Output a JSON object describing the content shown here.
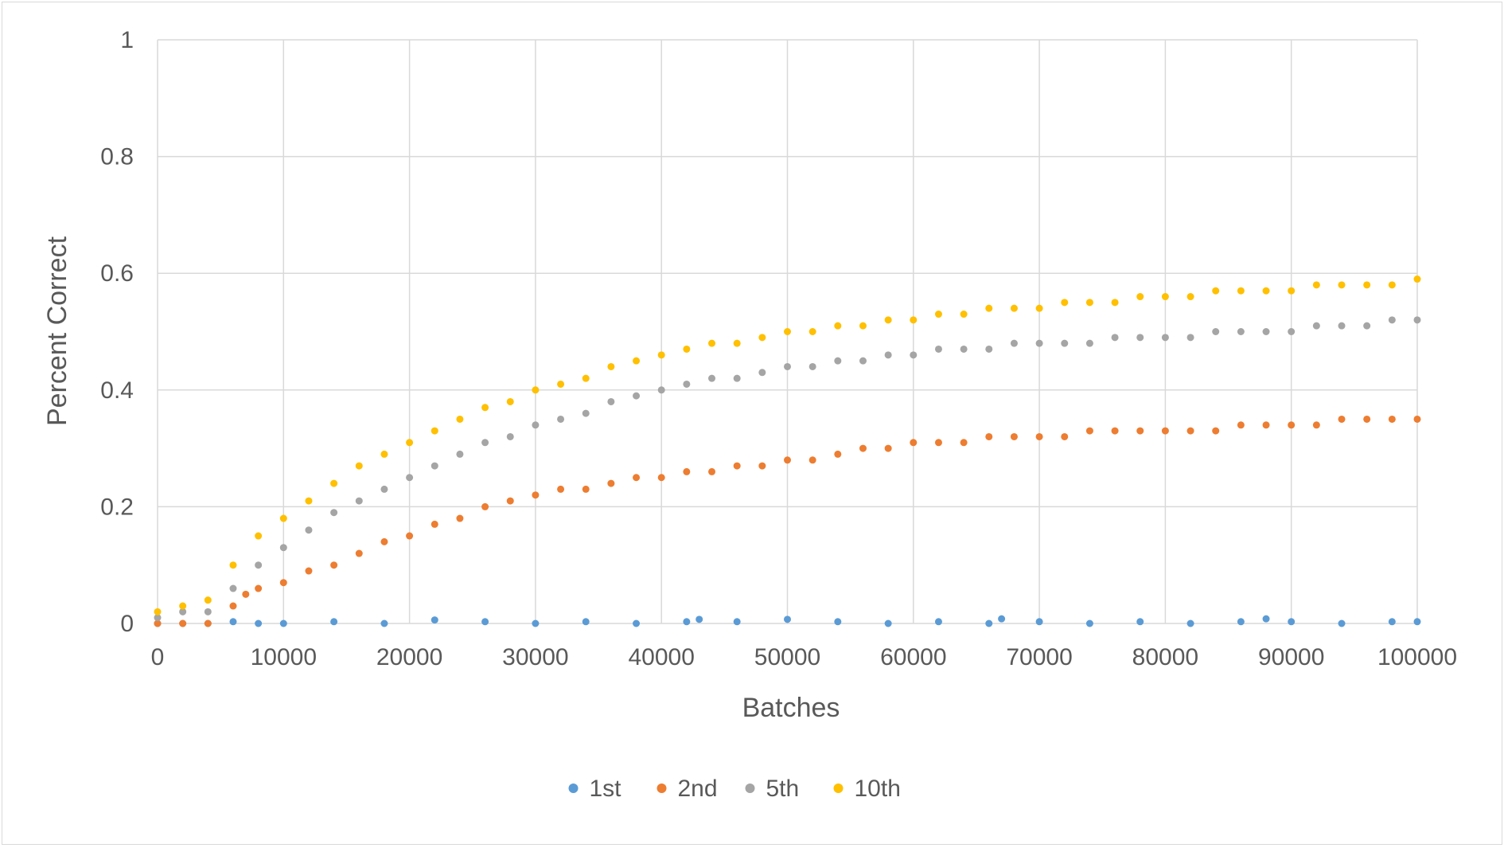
{
  "chart_data": {
    "type": "scatter",
    "title": "",
    "xlabel": "Batches",
    "ylabel": "Percent Correct",
    "xlim": [
      0,
      100000
    ],
    "ylim": [
      0,
      1
    ],
    "grid": true,
    "legend_position": "bottom",
    "x_ticks": [
      0,
      10000,
      20000,
      30000,
      40000,
      50000,
      60000,
      70000,
      80000,
      90000,
      100000
    ],
    "x_tick_labels": [
      "0",
      "10000",
      "20000",
      "30000",
      "40000",
      "50000",
      "60000",
      "70000",
      "80000",
      "90000",
      "100000"
    ],
    "y_ticks": [
      0,
      0.2,
      0.4,
      0.6,
      0.8,
      1
    ],
    "y_tick_labels": [
      "0",
      "0.2",
      "0.4",
      "0.6",
      "0.8",
      "1"
    ],
    "series": [
      {
        "name": "1st",
        "color": "#5b9bd5",
        "x": [
          0,
          2000,
          4000,
          6000,
          8000,
          10000,
          14000,
          18000,
          22000,
          26000,
          30000,
          34000,
          38000,
          42000,
          43000,
          46000,
          50000,
          54000,
          58000,
          62000,
          66000,
          67000,
          70000,
          74000,
          78000,
          82000,
          86000,
          88000,
          90000,
          94000,
          98000,
          100000
        ],
        "y": [
          0,
          0,
          0,
          0.003,
          0,
          0,
          0.003,
          0,
          0.006,
          0.003,
          0,
          0.003,
          0,
          0.003,
          0.007,
          0.003,
          0.007,
          0.003,
          0,
          0.003,
          0,
          0.008,
          0.003,
          0,
          0.003,
          0,
          0.003,
          0.008,
          0.003,
          0,
          0.003,
          0.003
        ]
      },
      {
        "name": "2nd",
        "color": "#ed7d31",
        "x": [
          0,
          2000,
          4000,
          6000,
          7000,
          8000,
          10000,
          12000,
          14000,
          16000,
          18000,
          20000,
          22000,
          24000,
          26000,
          28000,
          30000,
          32000,
          34000,
          36000,
          38000,
          40000,
          42000,
          44000,
          46000,
          48000,
          50000,
          52000,
          54000,
          56000,
          58000,
          60000,
          62000,
          64000,
          66000,
          68000,
          70000,
          72000,
          74000,
          76000,
          78000,
          80000,
          82000,
          84000,
          86000,
          88000,
          90000,
          92000,
          94000,
          96000,
          98000,
          100000
        ],
        "y": [
          0,
          0,
          0,
          0.03,
          0.05,
          0.06,
          0.07,
          0.09,
          0.1,
          0.12,
          0.14,
          0.15,
          0.17,
          0.18,
          0.2,
          0.21,
          0.22,
          0.23,
          0.23,
          0.24,
          0.25,
          0.25,
          0.26,
          0.26,
          0.27,
          0.27,
          0.28,
          0.28,
          0.29,
          0.3,
          0.3,
          0.31,
          0.31,
          0.31,
          0.32,
          0.32,
          0.32,
          0.32,
          0.33,
          0.33,
          0.33,
          0.33,
          0.33,
          0.33,
          0.34,
          0.34,
          0.34,
          0.34,
          0.35,
          0.35,
          0.35,
          0.35
        ]
      },
      {
        "name": "5th",
        "color": "#a5a5a5",
        "x": [
          0,
          2000,
          4000,
          6000,
          8000,
          10000,
          12000,
          14000,
          16000,
          18000,
          20000,
          22000,
          24000,
          26000,
          28000,
          30000,
          32000,
          34000,
          36000,
          38000,
          40000,
          42000,
          44000,
          46000,
          48000,
          50000,
          52000,
          54000,
          56000,
          58000,
          60000,
          62000,
          64000,
          66000,
          68000,
          70000,
          72000,
          74000,
          76000,
          78000,
          80000,
          82000,
          84000,
          86000,
          88000,
          90000,
          92000,
          94000,
          96000,
          98000,
          100000
        ],
        "y": [
          0.01,
          0.02,
          0.02,
          0.06,
          0.1,
          0.13,
          0.16,
          0.19,
          0.21,
          0.23,
          0.25,
          0.27,
          0.29,
          0.31,
          0.32,
          0.34,
          0.35,
          0.36,
          0.38,
          0.39,
          0.4,
          0.41,
          0.42,
          0.42,
          0.43,
          0.44,
          0.44,
          0.45,
          0.45,
          0.46,
          0.46,
          0.47,
          0.47,
          0.47,
          0.48,
          0.48,
          0.48,
          0.48,
          0.49,
          0.49,
          0.49,
          0.49,
          0.5,
          0.5,
          0.5,
          0.5,
          0.51,
          0.51,
          0.51,
          0.52,
          0.52
        ]
      },
      {
        "name": "10th",
        "color": "#ffc000",
        "x": [
          0,
          2000,
          4000,
          6000,
          8000,
          10000,
          12000,
          14000,
          16000,
          18000,
          20000,
          22000,
          24000,
          26000,
          28000,
          30000,
          32000,
          34000,
          36000,
          38000,
          40000,
          42000,
          44000,
          46000,
          48000,
          50000,
          52000,
          54000,
          56000,
          58000,
          60000,
          62000,
          64000,
          66000,
          68000,
          70000,
          72000,
          74000,
          76000,
          78000,
          80000,
          82000,
          84000,
          86000,
          88000,
          90000,
          92000,
          94000,
          96000,
          98000,
          100000
        ],
        "y": [
          0.02,
          0.03,
          0.04,
          0.1,
          0.15,
          0.18,
          0.21,
          0.24,
          0.27,
          0.29,
          0.31,
          0.33,
          0.35,
          0.37,
          0.38,
          0.4,
          0.41,
          0.42,
          0.44,
          0.45,
          0.46,
          0.47,
          0.48,
          0.48,
          0.49,
          0.5,
          0.5,
          0.51,
          0.51,
          0.52,
          0.52,
          0.53,
          0.53,
          0.54,
          0.54,
          0.54,
          0.55,
          0.55,
          0.55,
          0.56,
          0.56,
          0.56,
          0.57,
          0.57,
          0.57,
          0.57,
          0.58,
          0.58,
          0.58,
          0.58,
          0.59
        ]
      }
    ]
  }
}
